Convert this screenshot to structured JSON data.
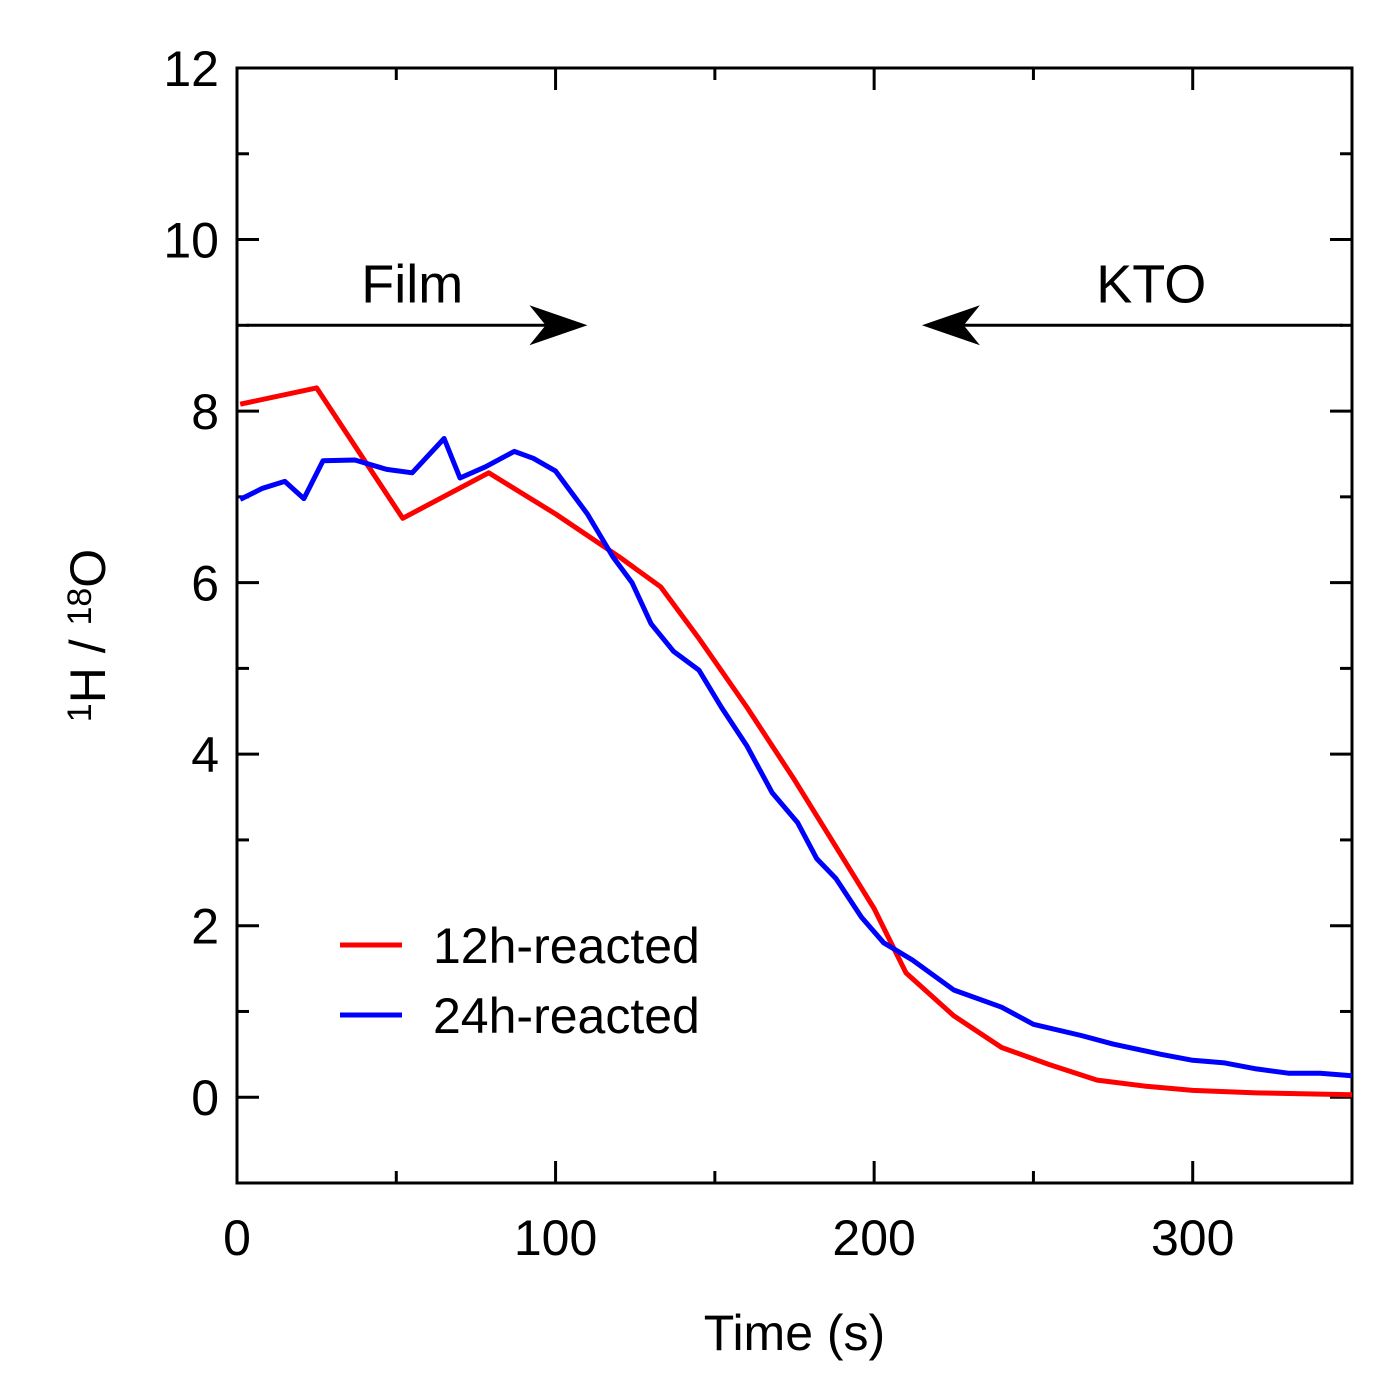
{
  "chart_data": {
    "type": "line",
    "title": "",
    "xlabel": "Time (s)",
    "ylabel": {
      "sup1": "1",
      "main1": "H",
      "sep": " / ",
      "sup2": "18",
      "main2": "O"
    },
    "xlim": [
      0,
      350
    ],
    "ylim": [
      -1,
      12
    ],
    "xticks": [
      0,
      100,
      200,
      300
    ],
    "yticks": [
      0,
      2,
      4,
      6,
      8,
      10,
      12
    ],
    "legend_position": "lower-left",
    "annotations": [
      {
        "text": "Film",
        "arrow_from_x": 3,
        "arrow_to_x": 110,
        "arrow_y": 9.0,
        "text_x": 55,
        "text_y": 9.5
      },
      {
        "text": "KTO",
        "arrow_from_x": 347,
        "arrow_to_x": 215,
        "arrow_y": 9.0,
        "text_x": 287,
        "text_y": 9.5
      }
    ],
    "series": [
      {
        "name": "12h-reacted",
        "color": "#ff0000",
        "points": [
          [
            1,
            8.08
          ],
          [
            25,
            8.27
          ],
          [
            52,
            6.75
          ],
          [
            79,
            7.28
          ],
          [
            100,
            6.8
          ],
          [
            120,
            6.3
          ],
          [
            133,
            5.95
          ],
          [
            145,
            5.35
          ],
          [
            160,
            4.55
          ],
          [
            175,
            3.7
          ],
          [
            190,
            2.8
          ],
          [
            200,
            2.2
          ],
          [
            210,
            1.45
          ],
          [
            225,
            0.95
          ],
          [
            240,
            0.58
          ],
          [
            255,
            0.38
          ],
          [
            270,
            0.2
          ],
          [
            285,
            0.13
          ],
          [
            300,
            0.08
          ],
          [
            320,
            0.05
          ],
          [
            350,
            0.03
          ]
        ]
      },
      {
        "name": "24h-reacted",
        "color": "#0000ff",
        "points": [
          [
            1,
            6.97
          ],
          [
            8,
            7.1
          ],
          [
            15,
            7.18
          ],
          [
            21,
            6.98
          ],
          [
            27,
            7.42
          ],
          [
            37,
            7.43
          ],
          [
            47,
            7.32
          ],
          [
            55,
            7.28
          ],
          [
            65,
            7.68
          ],
          [
            70,
            7.22
          ],
          [
            78,
            7.35
          ],
          [
            87,
            7.53
          ],
          [
            93,
            7.45
          ],
          [
            100,
            7.3
          ],
          [
            110,
            6.8
          ],
          [
            118,
            6.3
          ],
          [
            124,
            6.0
          ],
          [
            130,
            5.52
          ],
          [
            137,
            5.2
          ],
          [
            145,
            4.98
          ],
          [
            152,
            4.55
          ],
          [
            160,
            4.1
          ],
          [
            168,
            3.55
          ],
          [
            176,
            3.2
          ],
          [
            182,
            2.78
          ],
          [
            188,
            2.55
          ],
          [
            196,
            2.1
          ],
          [
            203,
            1.8
          ],
          [
            212,
            1.6
          ],
          [
            225,
            1.25
          ],
          [
            240,
            1.05
          ],
          [
            250,
            0.85
          ],
          [
            265,
            0.72
          ],
          [
            275,
            0.62
          ],
          [
            290,
            0.5
          ],
          [
            300,
            0.43
          ],
          [
            310,
            0.4
          ],
          [
            320,
            0.33
          ],
          [
            330,
            0.28
          ],
          [
            340,
            0.28
          ],
          [
            350,
            0.25
          ]
        ]
      }
    ]
  }
}
